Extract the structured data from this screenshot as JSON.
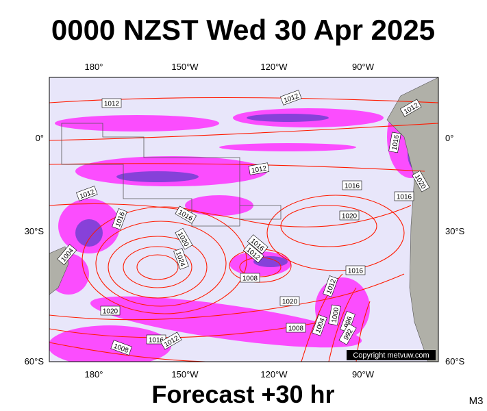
{
  "title": "0000 NZST Wed 30 Apr 2025",
  "top_axis": [
    "180°",
    "150°W",
    "120°W",
    "90°W"
  ],
  "bottom_axis": [
    "180°",
    "150°W",
    "120°W",
    "90°W"
  ],
  "left_axis": [
    "0°",
    "30°S",
    "60°S"
  ],
  "right_axis": [
    "0°",
    "30°S",
    "60°S"
  ],
  "isobar_labels": [
    "1012",
    "1012",
    "1012",
    "1016",
    "1020",
    "1012",
    "1016",
    "1016",
    "1012",
    "1016",
    "1016",
    "1020",
    "1020",
    "1024",
    "1016",
    "1012",
    "1004",
    "1008",
    "1016",
    "1012",
    "1020",
    "1020",
    "1000",
    "1008",
    "1004",
    "996",
    "992",
    "1016",
    "1012",
    "1008"
  ],
  "copyright": "Copyright metvuw.com",
  "footer": "Forecast +30 hr",
  "model": "M3"
}
